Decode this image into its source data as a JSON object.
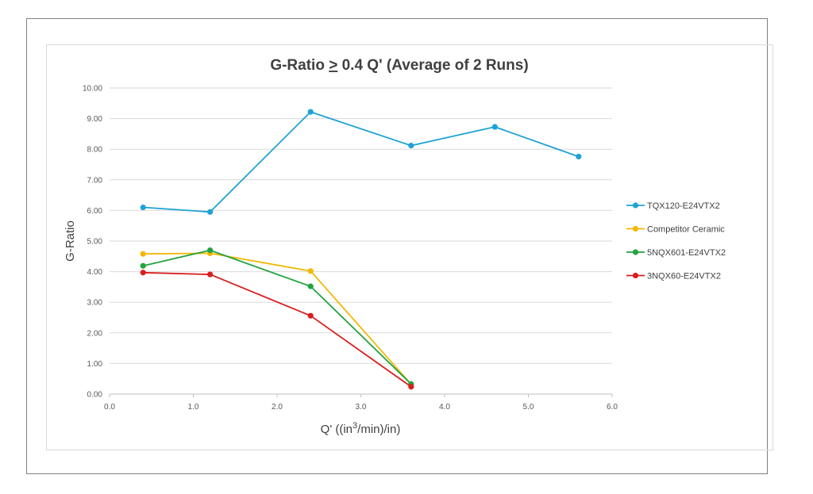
{
  "chart_data": {
    "type": "line",
    "title": {
      "prefix": "G-Ratio ",
      "operator": ">",
      "suffix": " 0.4 Q' (Average of 2 Runs)"
    },
    "xlabel": {
      "prefix": "Q' ((in",
      "superscript": "3",
      "suffix": "/min)/in)"
    },
    "ylabel": "G-Ratio",
    "xlim": [
      0.0,
      6.0
    ],
    "ylim": [
      0.0,
      10.0
    ],
    "x_ticks": [
      0.0,
      1.0,
      2.0,
      3.0,
      4.0,
      5.0,
      6.0
    ],
    "x_tick_labels": [
      "0.0",
      "1.0",
      "2.0",
      "3.0",
      "4.0",
      "5.0",
      "6.0"
    ],
    "y_ticks": [
      0,
      1,
      2,
      3,
      4,
      5,
      6,
      7,
      8,
      9,
      10
    ],
    "y_tick_labels": [
      "0.00",
      "1.00",
      "2.00",
      "3.00",
      "4.00",
      "5.00",
      "6.00",
      "7.00",
      "8.00",
      "9.00",
      "10.00"
    ],
    "grid": "horizontal",
    "legend_position": "right",
    "series": [
      {
        "name": "TQX120-E24VTX2",
        "color": "#1fa3d4",
        "x": [
          0.4,
          1.2,
          2.4,
          3.6,
          4.6,
          5.6
        ],
        "values": [
          6.1,
          5.95,
          9.22,
          8.12,
          8.73,
          7.76
        ]
      },
      {
        "name": "Competitor Ceramic",
        "color": "#f2b705",
        "x": [
          0.4,
          1.2,
          2.4,
          3.6
        ],
        "values": [
          4.58,
          4.6,
          4.02,
          0.32
        ]
      },
      {
        "name": "5NQX601-E24VTX2",
        "color": "#23a340",
        "x": [
          0.4,
          1.2,
          2.4,
          3.6
        ],
        "values": [
          4.19,
          4.7,
          3.52,
          0.33
        ]
      },
      {
        "name": "3NQX60-E24VTX2",
        "color": "#d91e1e",
        "x": [
          0.4,
          1.2,
          2.4,
          3.6
        ],
        "values": [
          3.97,
          3.91,
          2.56,
          0.24
        ]
      }
    ]
  }
}
